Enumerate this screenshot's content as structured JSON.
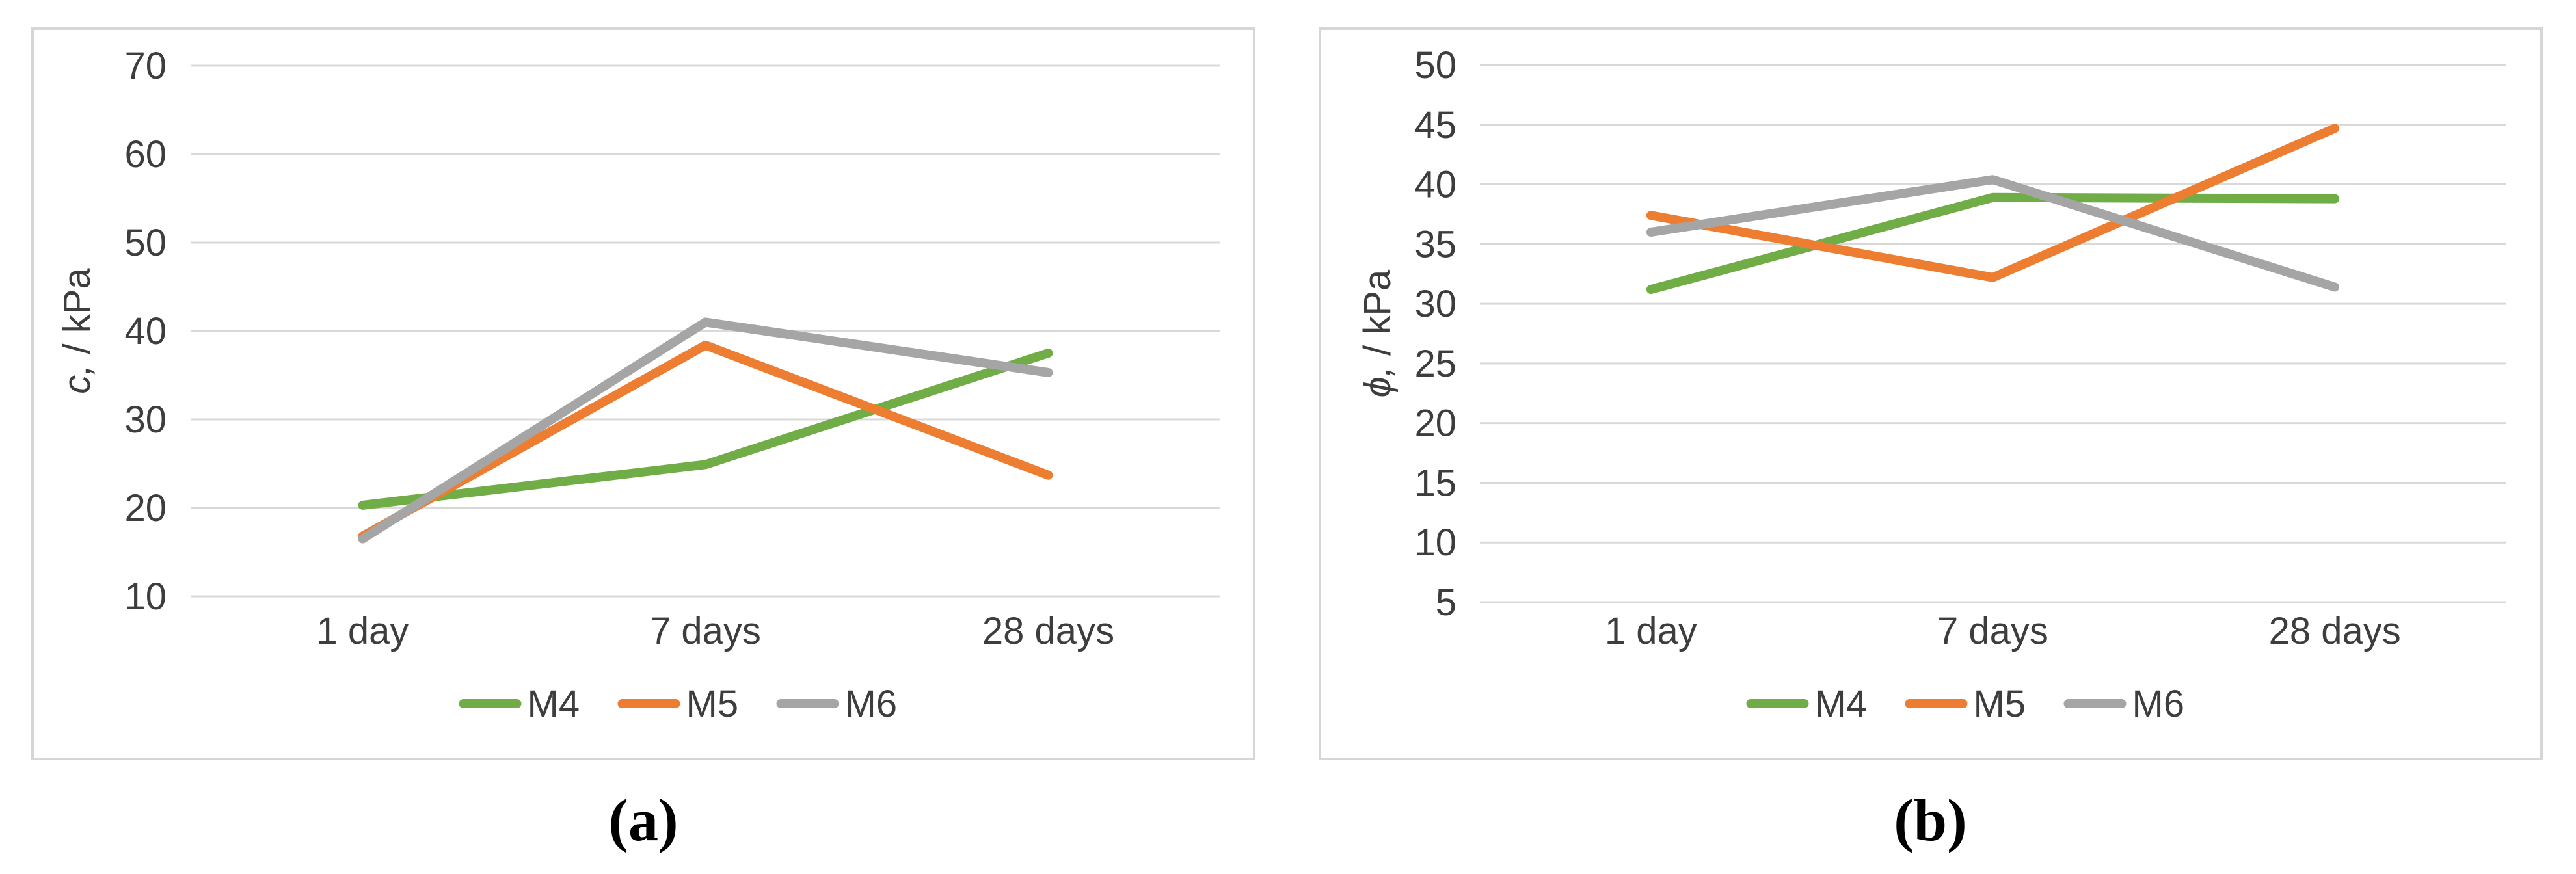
{
  "figure": {
    "captions": {
      "a": "(a)",
      "b": "(b)"
    }
  },
  "colors": {
    "m4_green": "#70AD47",
    "m5_orange": "#ED7D31",
    "m6_gray": "#A5A5A5",
    "gridline": "#D9D9D9",
    "panel_border": "#D6D6D6",
    "text": "#3D3D3D"
  },
  "chart_data": [
    {
      "id": "a",
      "type": "line",
      "title": "",
      "caption": "(a)",
      "ylabel_symbol": "c,",
      "ylabel_unit": " / kPa",
      "ylabel_full": "c, / kPa",
      "ylim": [
        10,
        70
      ],
      "ytick_step": 10,
      "ytick_labels": [
        "10",
        "20",
        "30",
        "40",
        "50",
        "60",
        "70"
      ],
      "grid": true,
      "legend_position": "bottom",
      "categories": [
        "1 day",
        "7 days",
        "28 days"
      ],
      "series": [
        {
          "name": "M4",
          "color": "#70AD47",
          "values": [
            20.3,
            24.9,
            37.5
          ]
        },
        {
          "name": "M5",
          "color": "#ED7D31",
          "values": [
            16.8,
            38.4,
            23.7
          ]
        },
        {
          "name": "M6",
          "color": "#A5A5A5",
          "values": [
            16.5,
            41.0,
            35.3
          ]
        }
      ]
    },
    {
      "id": "b",
      "type": "line",
      "title": "",
      "caption": "(b)",
      "ylabel_symbol": "ϕ,",
      "ylabel_unit": " / kPa",
      "ylabel_full": "ϕ, / kPa",
      "ylim": [
        5,
        50
      ],
      "ytick_step": 5,
      "ytick_labels": [
        "5",
        "10",
        "15",
        "20",
        "25",
        "30",
        "35",
        "40",
        "45",
        "50"
      ],
      "grid": true,
      "legend_position": "bottom",
      "categories": [
        "1 day",
        "7 days",
        "28 days"
      ],
      "series": [
        {
          "name": "M4",
          "color": "#70AD47",
          "values": [
            31.2,
            38.9,
            38.8
          ]
        },
        {
          "name": "M5",
          "color": "#ED7D31",
          "values": [
            37.4,
            32.2,
            44.7
          ]
        },
        {
          "name": "M6",
          "color": "#A5A5A5",
          "values": [
            36.0,
            40.4,
            31.4
          ]
        }
      ]
    }
  ]
}
